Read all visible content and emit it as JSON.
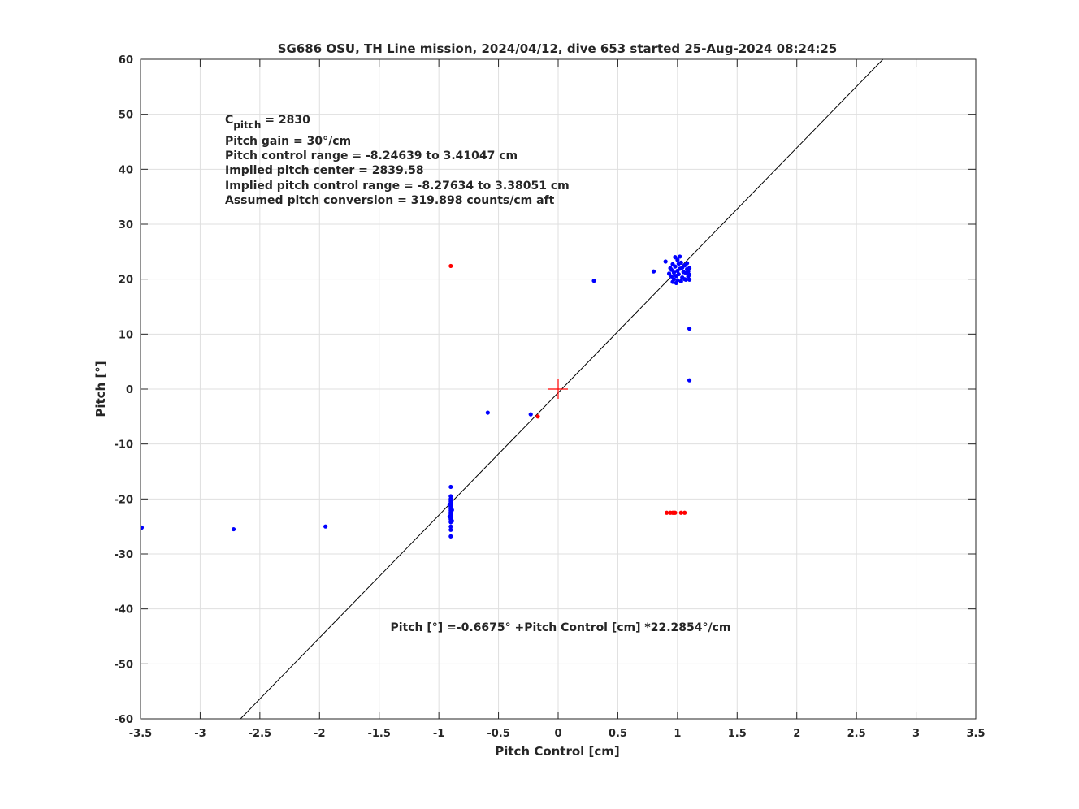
{
  "chart_data": {
    "type": "scatter",
    "title": "SG686 OSU, TH Line mission, 2024/04/12, dive 653 started 25-Aug-2024 08:24:25",
    "xlabel": "Pitch Control [cm]",
    "ylabel": "Pitch [°]",
    "xlim": [
      -3.5,
      3.5
    ],
    "ylim": [
      -60,
      60
    ],
    "xticks": [
      "-3.5",
      "-3",
      "-2.5",
      "-2",
      "-1.5",
      "-1",
      "-0.5",
      "0",
      "0.5",
      "1",
      "1.5",
      "2",
      "2.5",
      "3",
      "3.5"
    ],
    "yticks": [
      "-60",
      "-50",
      "-40",
      "-30",
      "-20",
      "-10",
      "0",
      "10",
      "20",
      "30",
      "40",
      "50",
      "60"
    ],
    "grid": true,
    "legend": "none",
    "annotations": {
      "cpitch_main": "C",
      "cpitch_sub": "pitch",
      "cpitch_value": " = 2830",
      "gain": "Pitch gain = 30°/cm",
      "range": "Pitch control range = -8.24639 to 3.41047 cm",
      "center": "Implied pitch center = 2839.58",
      "implied_range": "Implied pitch control range = -8.27634 to 3.38051 cm",
      "conversion": "Assumed pitch conversion = 319.898 counts/cm aft",
      "fit": "Pitch [°] =-0.6675° +Pitch Control [cm] *22.2854°/cm"
    },
    "fit_line": {
      "intercept": -0.6675,
      "slope": 22.2854,
      "color": "#000000"
    },
    "center_marker": {
      "x": 0,
      "y": 0,
      "color": "#ff0000"
    },
    "series": [
      {
        "color": "#0000ff",
        "points": [
          [
            -3.49,
            -25.2
          ],
          [
            -2.72,
            -25.5
          ],
          [
            -1.95,
            -25.0
          ],
          [
            -0.9,
            -17.8
          ],
          [
            -0.9,
            -19.5
          ],
          [
            -0.9,
            -20.0
          ],
          [
            -0.9,
            -20.4
          ],
          [
            -0.9,
            -20.8
          ],
          [
            -0.9,
            -21.1
          ],
          [
            -0.9,
            -21.4
          ],
          [
            -0.9,
            -21.8
          ],
          [
            -0.9,
            -22.1
          ],
          [
            -0.9,
            -22.4
          ],
          [
            -0.9,
            -22.7
          ],
          [
            -0.9,
            -23.0
          ],
          [
            -0.9,
            -23.3
          ],
          [
            -0.9,
            -23.7
          ],
          [
            -0.9,
            -24.2
          ],
          [
            -0.9,
            -25.0
          ],
          [
            -0.9,
            -25.6
          ],
          [
            -0.9,
            -26.8
          ],
          [
            -0.91,
            -21.0
          ],
          [
            -0.89,
            -22.0
          ],
          [
            -0.91,
            -23.2
          ],
          [
            -0.89,
            -24.0
          ],
          [
            -0.59,
            -4.3
          ],
          [
            -0.23,
            -4.6
          ],
          [
            0.3,
            19.7
          ],
          [
            0.8,
            21.4
          ],
          [
            0.9,
            23.2
          ],
          [
            0.93,
            21.0
          ],
          [
            0.94,
            22.0
          ],
          [
            0.95,
            20.5
          ],
          [
            0.95,
            21.7
          ],
          [
            0.96,
            19.5
          ],
          [
            0.96,
            22.7
          ],
          [
            0.97,
            20.0
          ],
          [
            0.97,
            21.2
          ],
          [
            0.98,
            22.3
          ],
          [
            0.98,
            24.0
          ],
          [
            0.99,
            19.3
          ],
          [
            0.99,
            20.6
          ],
          [
            1.0,
            21.5
          ],
          [
            1.0,
            23.5
          ],
          [
            1.0,
            19.8
          ],
          [
            1.01,
            22.8
          ],
          [
            1.01,
            20.9
          ],
          [
            1.02,
            24.1
          ],
          [
            1.02,
            21.9
          ],
          [
            1.03,
            19.6
          ],
          [
            1.03,
            23.0
          ],
          [
            1.04,
            20.3
          ],
          [
            1.04,
            22.1
          ],
          [
            1.05,
            21.3
          ],
          [
            1.06,
            20.0
          ],
          [
            1.06,
            22.5
          ],
          [
            1.07,
            21.1
          ],
          [
            1.07,
            19.9
          ],
          [
            1.08,
            21.8
          ],
          [
            1.08,
            22.9
          ],
          [
            1.09,
            20.5
          ],
          [
            1.09,
            21.4
          ],
          [
            1.1,
            22.0
          ],
          [
            1.1,
            20.8
          ],
          [
            1.1,
            19.9
          ],
          [
            1.1,
            11.0
          ],
          [
            1.1,
            1.6
          ]
        ]
      },
      {
        "color": "#ff0000",
        "points": [
          [
            -0.9,
            22.4
          ],
          [
            -0.17,
            -5.0
          ],
          [
            0.91,
            -22.5
          ],
          [
            0.94,
            -22.5
          ],
          [
            0.96,
            -22.5
          ],
          [
            0.97,
            -22.5
          ],
          [
            0.98,
            -22.5
          ],
          [
            1.03,
            -22.5
          ],
          [
            1.06,
            -22.5
          ]
        ]
      }
    ]
  }
}
